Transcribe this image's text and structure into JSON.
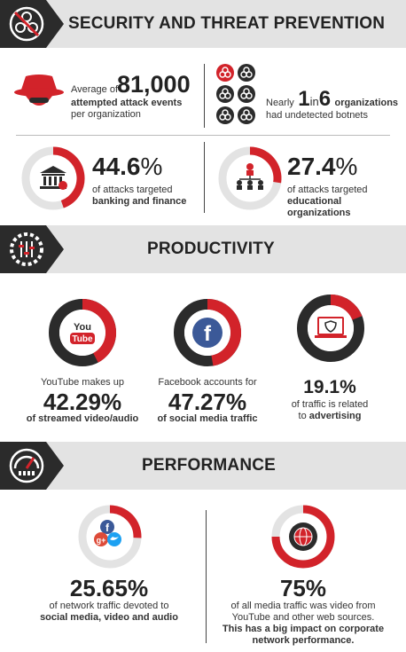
{
  "colors": {
    "red": "#d2232a",
    "dark": "#2b2b2b",
    "grey": "#e3e3e3",
    "ring": "#3a3a3a"
  },
  "security": {
    "title": "SECURITY AND THREAT PREVENTION",
    "attack": {
      "prefix": "Average of",
      "number": "81,000",
      "line2": "attempted attack events",
      "line3": "per organization"
    },
    "botnet": {
      "nearly": "Nearly",
      "num1": "1",
      "in": "in",
      "num2": "6",
      "orgs": "organizations",
      "line2": "had undetected botnets"
    },
    "banking": {
      "pct": "44.6",
      "pct_sign": "%",
      "line1": "of attacks targeted",
      "line2": "banking and finance",
      "fraction": 0.446
    },
    "education": {
      "pct": "27.4",
      "pct_sign": "%",
      "line1": "of attacks targeted",
      "line2": "educational organizations",
      "fraction": 0.274
    }
  },
  "productivity": {
    "title": "PRODUCTIVITY",
    "youtube": {
      "label": "YouTube makes up",
      "pct": "42.29%",
      "desc": "of streamed video/audio",
      "fraction": 0.4229,
      "logo_top": "You",
      "logo_bottom": "Tube"
    },
    "facebook": {
      "label": "Facebook accounts for",
      "pct": "47.27%",
      "desc": "of social media traffic",
      "fraction": 0.4727,
      "logo": "f"
    },
    "advertising": {
      "pct": "19.1%",
      "line1": "of traffic is related",
      "line2": "to advertising",
      "line2_prefix": "to ",
      "line2_bold": "advertising",
      "fraction": 0.191
    }
  },
  "performance": {
    "title": "PERFORMANCE",
    "social": {
      "pct": "25.65%",
      "line1": "of network traffic devoted to",
      "line2": "social media, video and audio",
      "fraction": 0.2565,
      "fb": "f",
      "gplus": "g+"
    },
    "video": {
      "pct": "75%",
      "line1": "of all media traffic was video from",
      "line2": "YouTube and other web sources.",
      "line3": "This has a big impact on corporate",
      "line4": "network performance.",
      "fraction": 0.75
    }
  }
}
